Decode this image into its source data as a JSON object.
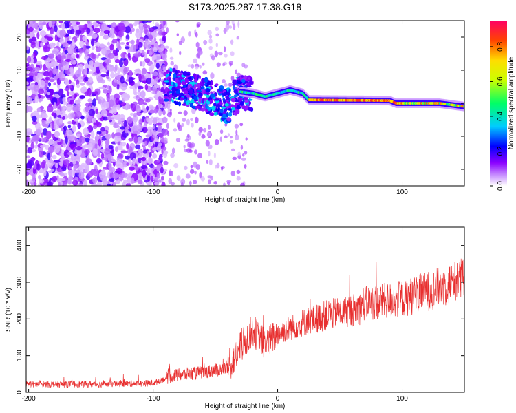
{
  "title": "S173.2025.287.17.38.G18",
  "chart_data": [
    {
      "type": "heatmap",
      "xlabel": "Height of straight line (km)",
      "ylabel": "Frequency (Hz)",
      "xlim": [
        -202,
        150
      ],
      "ylim": [
        -25,
        25
      ],
      "xticks": [
        -200,
        -100,
        0,
        100
      ],
      "yticks": [
        -20,
        -10,
        0,
        10,
        20
      ],
      "colorbar": {
        "label": "Normalized spectral amplitude",
        "range": [
          0,
          0.95
        ],
        "ticks": [
          0.0,
          0.2,
          0.4,
          0.6,
          0.8
        ],
        "tick_labels": [
          "0.0",
          "0.2",
          "0.4",
          "0.6",
          "0.8"
        ]
      },
      "ridge": [
        {
          "x": -88,
          "y": 5.5
        },
        {
          "x": -75,
          "y": 4.5
        },
        {
          "x": -62,
          "y": 3
        },
        {
          "x": -50,
          "y": 1
        },
        {
          "x": -40,
          "y": -1
        },
        {
          "x": -30,
          "y": 3.5
        },
        {
          "x": -20,
          "y": 3
        },
        {
          "x": -10,
          "y": 2
        },
        {
          "x": 0,
          "y": 3
        },
        {
          "x": 10,
          "y": 4
        },
        {
          "x": 20,
          "y": 3
        },
        {
          "x": 25,
          "y": 1
        },
        {
          "x": 90,
          "y": 0.8
        },
        {
          "x": 95,
          "y": 0
        },
        {
          "x": 130,
          "y": 0
        },
        {
          "x": 150,
          "y": -1
        }
      ]
    },
    {
      "type": "line",
      "xlabel": "Height of straight line (km)",
      "ylabel": "SNR (10 * v/v)",
      "xlim": [
        -202,
        150
      ],
      "ylim": [
        0,
        450
      ],
      "xticks": [
        -200,
        -100,
        0,
        100
      ],
      "yticks": [
        0,
        100,
        200,
        300,
        400
      ],
      "series": [
        {
          "name": "SNR",
          "color": "#e83030",
          "trend": [
            {
              "x": -202,
              "y": 22
            },
            {
              "x": -150,
              "y": 22
            },
            {
              "x": -100,
              "y": 25
            },
            {
              "x": -85,
              "y": 45
            },
            {
              "x": -60,
              "y": 55
            },
            {
              "x": -40,
              "y": 65
            },
            {
              "x": -30,
              "y": 120
            },
            {
              "x": -20,
              "y": 170
            },
            {
              "x": -10,
              "y": 130
            },
            {
              "x": 0,
              "y": 160
            },
            {
              "x": 20,
              "y": 190
            },
            {
              "x": 40,
              "y": 210
            },
            {
              "x": 60,
              "y": 225
            },
            {
              "x": 67,
              "y": 230
            },
            {
              "x": 68,
              "y": 240
            },
            {
              "x": 100,
              "y": 255
            },
            {
              "x": 130,
              "y": 285
            },
            {
              "x": 150,
              "y": 310
            }
          ]
        }
      ]
    }
  ]
}
